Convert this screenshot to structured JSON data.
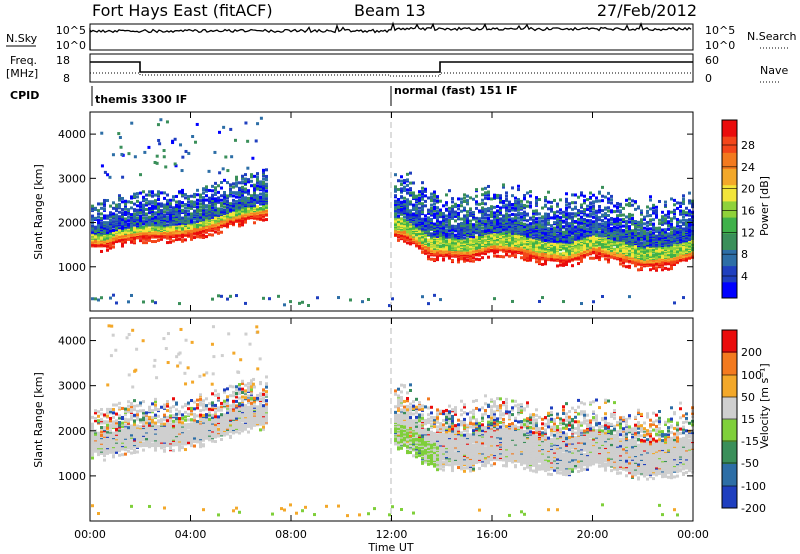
{
  "header": {
    "station": "Fort Hays East (fitACF)",
    "beam": "Beam 13",
    "date": "27/Feb/2012"
  },
  "status_panels": {
    "nsky_label": "N.Sky",
    "nsky_ticks": [
      "10^5",
      "10^0"
    ],
    "nsearch_label": "N.Search",
    "nsearch_ticks": [
      "10^5",
      "10^0"
    ],
    "freq_label_1": "Freq.",
    "freq_label_2": "[MHz]",
    "freq_ticks": [
      "18",
      "8"
    ],
    "nave_label": "Nave",
    "nave_ticks": [
      "60",
      "0"
    ],
    "cpid_label": "CPID",
    "cpid_segments": [
      "themis 3300 IF",
      "normal (fast) 151 IF"
    ]
  },
  "chart_data": [
    {
      "type": "heatmap",
      "panel": "power",
      "ylabel": "Slant Range [km]",
      "xlabel": "Time UT",
      "xlim": [
        0,
        24
      ],
      "ylim": [
        0,
        4500
      ],
      "yticks": [
        "1000",
        "2000",
        "3000",
        "4000"
      ],
      "xticks": [
        "00:00",
        "04:00",
        "08:00",
        "12:00",
        "16:00",
        "20:00",
        "00:00"
      ],
      "colorbar": {
        "label": "Power [dB]",
        "ticks": [
          "4",
          "8",
          "12",
          "16",
          "20",
          "24",
          "28"
        ],
        "colors": [
          "#0000ff",
          "#1f3fbf",
          "#2d6ea6",
          "#3a8f5a",
          "#3fb14a",
          "#8fd23a",
          "#f3e53a",
          "#f3a82a",
          "#f37a1f",
          "#f3461a",
          "#ea0c0c"
        ]
      },
      "range_profile_km": {
        "hours": [
          0.5,
          1,
          2,
          3,
          4,
          5,
          6,
          7,
          12.5,
          13.5,
          15,
          16,
          17,
          18,
          19,
          20,
          21,
          22,
          23,
          24
        ],
        "range": [
          1500,
          1600,
          1700,
          1700,
          1750,
          1900,
          2100,
          2200,
          1700,
          1300,
          1250,
          1400,
          1350,
          1200,
          1150,
          1350,
          1200,
          1050,
          1100,
          1250
        ]
      }
    },
    {
      "type": "heatmap",
      "panel": "velocity",
      "ylabel": "Slant Range [km]",
      "xlabel": "Time UT",
      "xlim": [
        0,
        24
      ],
      "ylim": [
        0,
        4500
      ],
      "yticks": [
        "1000",
        "2000",
        "3000",
        "4000"
      ],
      "xticks": [
        "00:00",
        "04:00",
        "08:00",
        "12:00",
        "16:00",
        "20:00",
        "00:00"
      ],
      "colorbar": {
        "label": "Velocity [m s⁻¹]",
        "ticks": [
          "200",
          "100",
          "50",
          "15",
          "-15",
          "-50",
          "-100",
          "-200"
        ],
        "colors": [
          "#1f3fbf",
          "#2d6ea6",
          "#3a8f5a",
          "#7fcf3a",
          "#cfcfcf",
          "#f3a82a",
          "#f37a1f",
          "#ea0c0c"
        ]
      }
    }
  ]
}
